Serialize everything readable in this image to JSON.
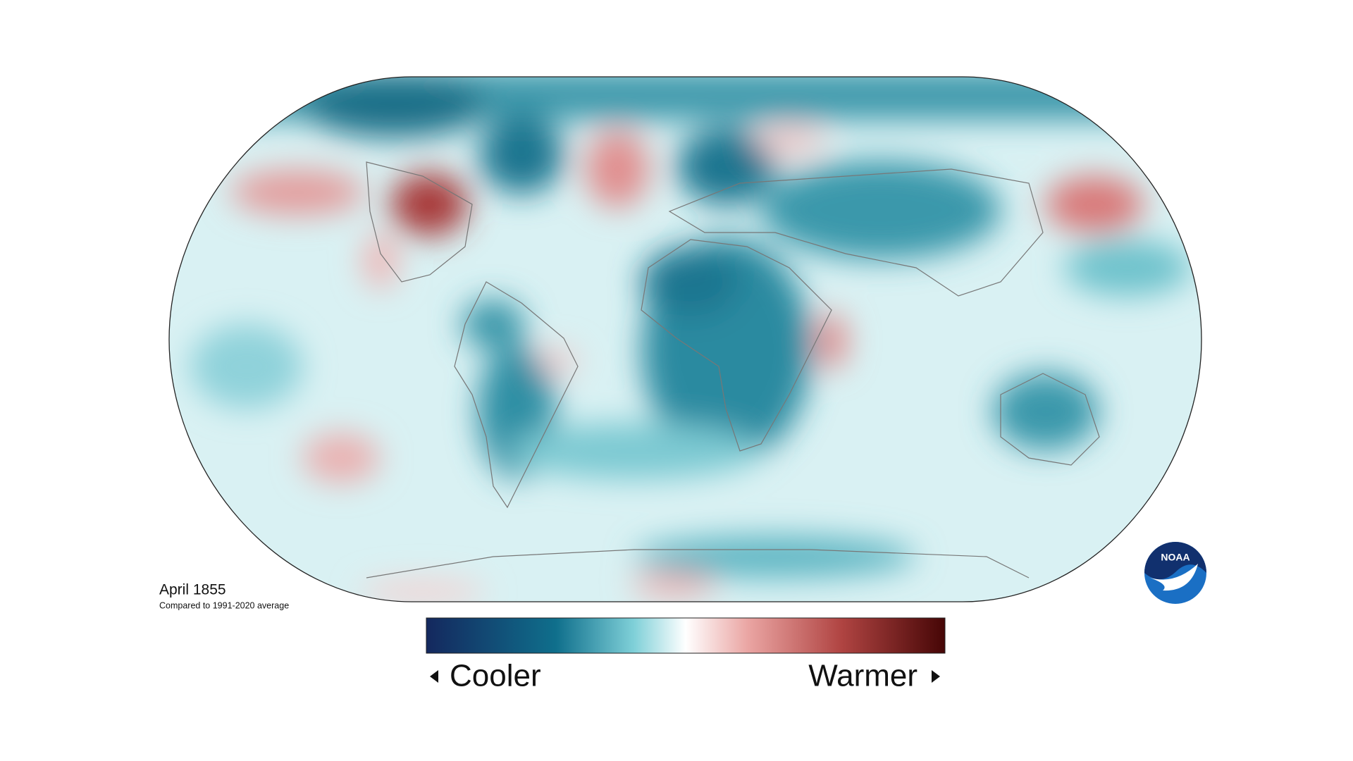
{
  "map": {
    "title": "April 1855",
    "subtitle": "Compared to 1991-2020 average"
  },
  "legend": {
    "low_label": "Cooler",
    "high_label": "Warmer"
  },
  "logo": {
    "text": "NOAA"
  }
}
